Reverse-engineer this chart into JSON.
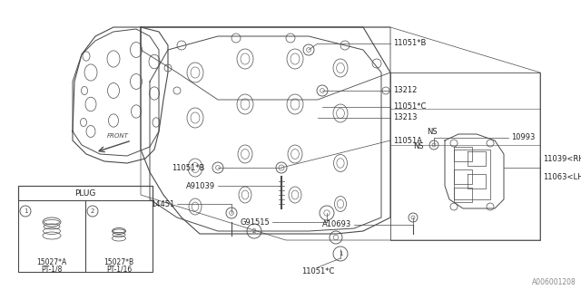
{
  "bg_color": "#ffffff",
  "line_color": "#4a4a4a",
  "fig_width": 6.4,
  "fig_height": 3.2,
  "dpi": 100,
  "watermark": "A006001208",
  "label_fs": 5.5,
  "plug_title": "PLUG",
  "plug_item1_label1": "15027*A",
  "plug_item1_label2": "PT-1/8",
  "plug_item2_label1": "15027*B",
  "plug_item2_label2": "PT-1/16"
}
